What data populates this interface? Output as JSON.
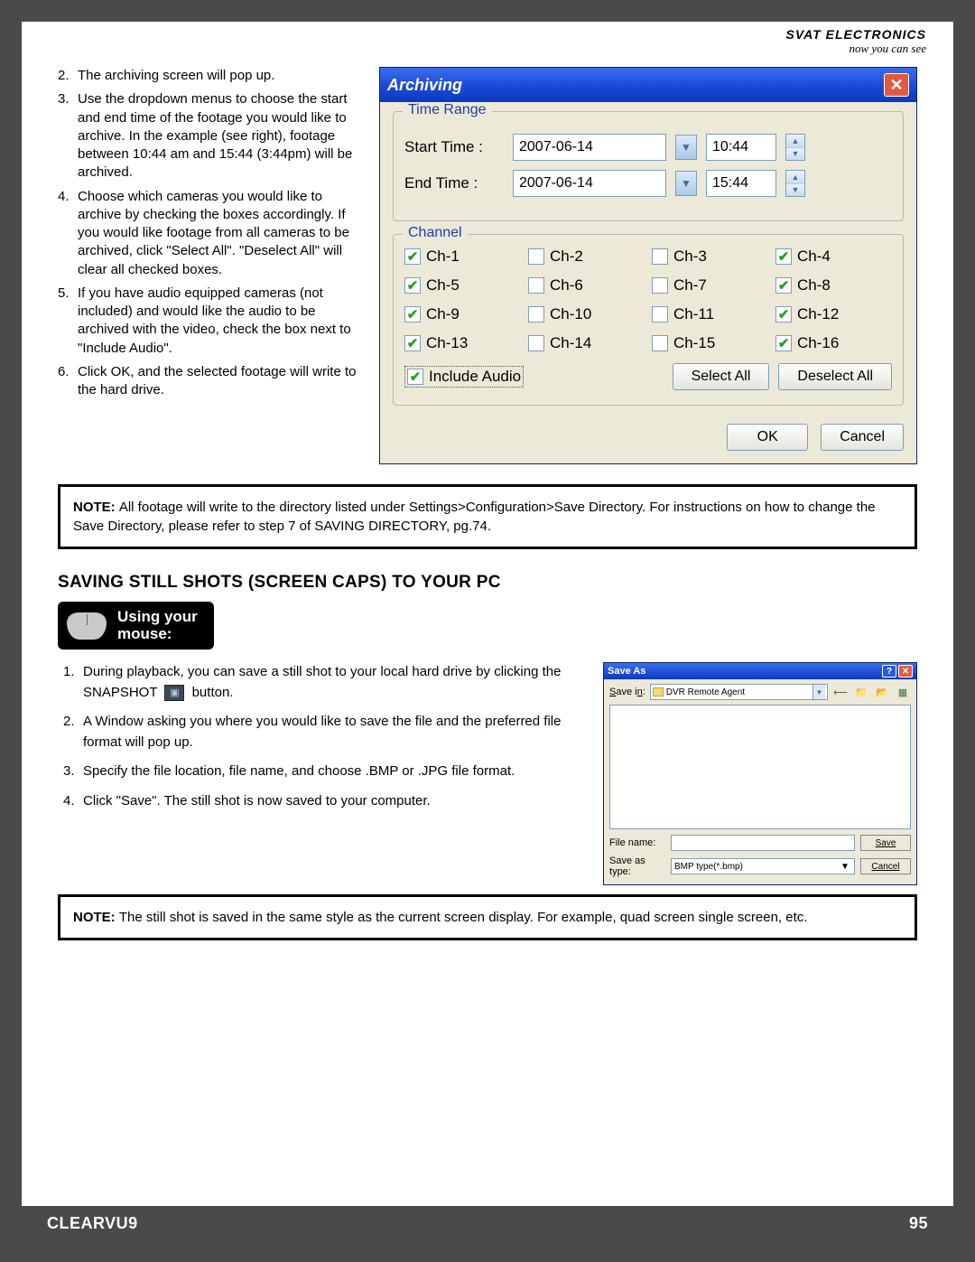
{
  "header": {
    "brand": "SVAT ELECTRONICS",
    "tagline": "now you can see"
  },
  "instructions": [
    {
      "n": "2.",
      "t": "The archiving screen will pop up."
    },
    {
      "n": "3.",
      "t": "Use the dropdown menus to choose the start and end time of the footage you would like to archive.  In the example (see right), footage between 10:44 am and 15:44 (3:44pm) will be archived."
    },
    {
      "n": "4.",
      "t": "Choose which cameras you would like to archive by checking the boxes accordingly.  If you would like footage from all cameras to be archived, click \"Select All\".  \"Deselect All\" will clear all checked boxes."
    },
    {
      "n": "5.",
      "t": "If you have audio equipped cameras (not included) and would like the audio to be archived with the video, check the box next to \"Include Audio\"."
    },
    {
      "n": "6.",
      "t": "Click OK, and the selected footage will write to the hard drive."
    }
  ],
  "archiving": {
    "title": "Archiving",
    "group_time": "Time Range",
    "start_label": "Start Time  :",
    "end_label": "End Time  :",
    "start_date": "2007-06-14",
    "start_time": "10:44",
    "end_date": "2007-06-14",
    "end_time": "15:44",
    "group_channel": "Channel",
    "channels": [
      {
        "label": "Ch-1",
        "checked": true
      },
      {
        "label": "Ch-2",
        "checked": false
      },
      {
        "label": "Ch-3",
        "checked": false
      },
      {
        "label": "Ch-4",
        "checked": true
      },
      {
        "label": "Ch-5",
        "checked": true
      },
      {
        "label": "Ch-6",
        "checked": false
      },
      {
        "label": "Ch-7",
        "checked": false
      },
      {
        "label": "Ch-8",
        "checked": true
      },
      {
        "label": "Ch-9",
        "checked": true
      },
      {
        "label": "Ch-10",
        "checked": false
      },
      {
        "label": "Ch-11",
        "checked": false
      },
      {
        "label": "Ch-12",
        "checked": true
      },
      {
        "label": "Ch-13",
        "checked": true
      },
      {
        "label": "Ch-14",
        "checked": false
      },
      {
        "label": "Ch-15",
        "checked": false
      },
      {
        "label": "Ch-16",
        "checked": true
      }
    ],
    "include_audio_label": "Include Audio",
    "include_audio_checked": true,
    "select_all": "Select All",
    "deselect_all": "Deselect All",
    "ok": "OK",
    "cancel": "Cancel"
  },
  "note1": {
    "label": "NOTE:  ",
    "text": "All footage will write to the directory listed under Settings>Configuration>Save Directory.  For instructions on how to change the Save Directory, please refer to step 7 of SAVING DIRECTORY, pg.74."
  },
  "section2_heading": "SAVING STILL SHOTS (SCREEN CAPS) TO YOUR PC",
  "mouse_badge": {
    "line1": "Using your",
    "line2": "mouse:"
  },
  "sec2_items": [
    {
      "n": "1.",
      "pre": "During playback, you can save a still shot to your local hard drive by clicking the",
      "snap": "SNAPSHOT",
      "post": " button."
    },
    {
      "n": "2.",
      "t": "A Window asking you where you would like to save the file and the preferred file format will pop up."
    },
    {
      "n": "3.",
      "t": "Specify the file location, file name, and choose .BMP or .JPG file format."
    },
    {
      "n": "4.",
      "t": "Click \"Save\".  The still shot is now saved to your computer."
    }
  ],
  "saveas": {
    "title": "Save As",
    "savein_lbl": "Save in:",
    "savein_val": "DVR Remote Agent",
    "filename_lbl": "File name:",
    "filename_val": "",
    "type_lbl": "Save as type:",
    "type_val": "BMP type(*.bmp)",
    "save_btn": "Save",
    "cancel_btn": "Cancel"
  },
  "note2": {
    "label": "NOTE:  ",
    "text": "The still shot is saved in the same style as the current screen display.  For example, quad screen single screen, etc."
  },
  "footer": {
    "product": "CLEARVU9",
    "page": "95"
  }
}
